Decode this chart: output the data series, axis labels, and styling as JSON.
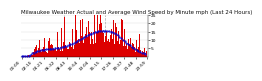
{
  "title": "Milwaukee Weather Actual and Average Wind Speed by Minute mph (Last 24 Hours)",
  "background_color": "#ffffff",
  "plot_background": "#ffffff",
  "bar_color": "#dd0000",
  "line_color": "#0000cc",
  "grid_color": "#dddddd",
  "n_points": 1440,
  "ylim": [
    0,
    25
  ],
  "ytick_values": [
    5,
    10,
    15,
    20,
    25
  ],
  "vline_color": "#aaaaaa",
  "title_fontsize": 4.0,
  "tick_fontsize": 3.2,
  "seed": 17
}
